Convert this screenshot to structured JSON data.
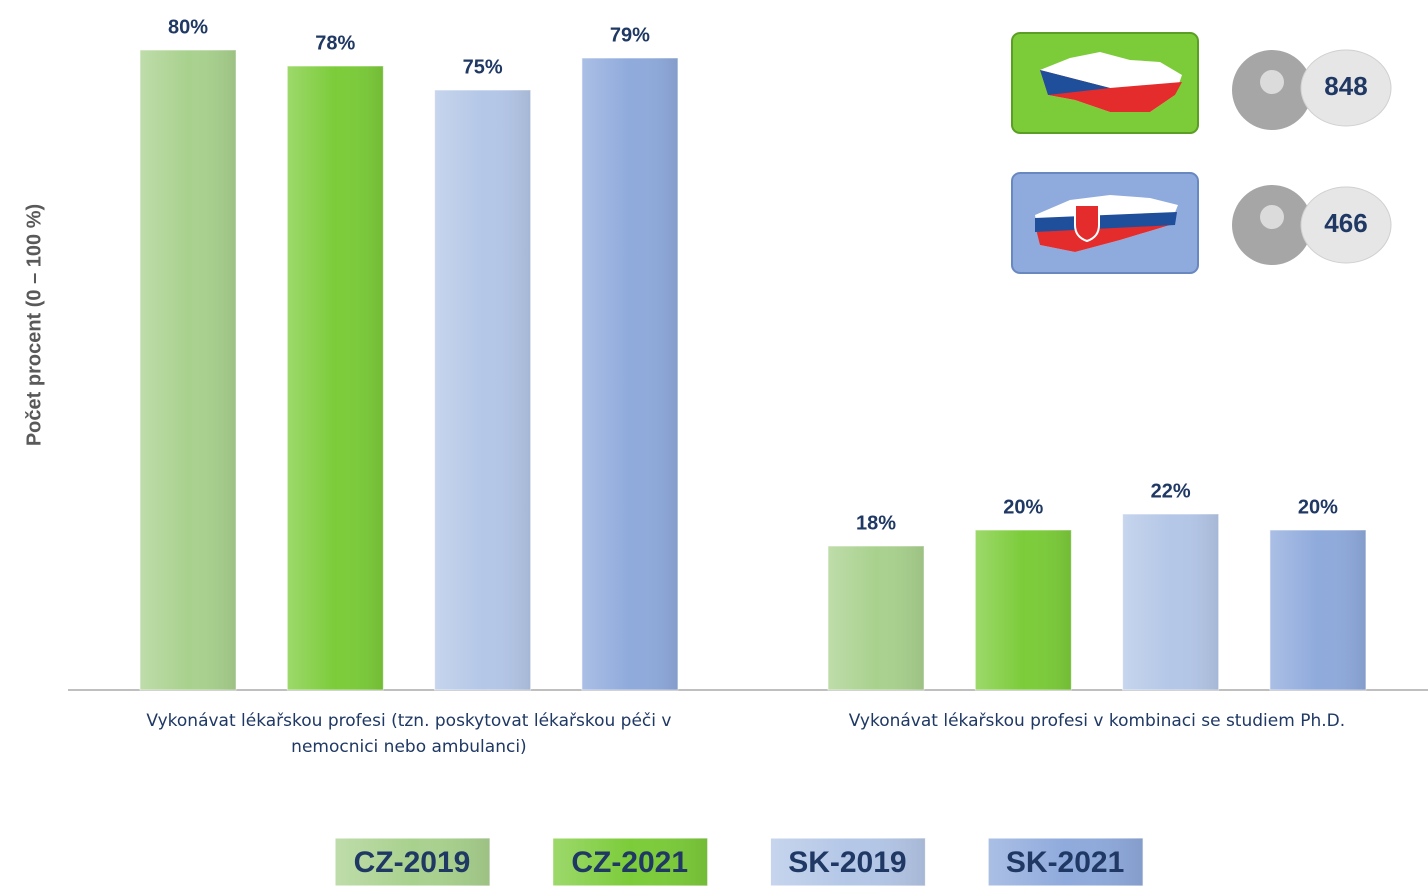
{
  "chart_data": {
    "type": "bar",
    "y_label": "Počet procent  (0 – 100 %)",
    "categories": [
      "Vykonávat lékařskou profesi (tzn. poskytovat lékařskou péči v nemocnici nebo ambulanci)",
      "Vykonávat lékařskou profesi v kombinaci se studiem Ph.D."
    ],
    "series": [
      {
        "name": "CZ-2019",
        "color": "#a9d18e",
        "values": [
          80,
          18
        ],
        "value_labels": [
          "80%",
          "18%"
        ]
      },
      {
        "name": "CZ-2021",
        "color": "#7ccc3a",
        "values": [
          78,
          20
        ],
        "value_labels": [
          "78%",
          "20%"
        ]
      },
      {
        "name": "SK-2019",
        "color": "#b4c7e7",
        "values": [
          75,
          22
        ],
        "value_labels": [
          "75%",
          "22%"
        ]
      },
      {
        "name": "SK-2021",
        "color": "#8faadc",
        "values": [
          79,
          20
        ],
        "value_labels": [
          "79%",
          "20%"
        ]
      }
    ],
    "ylim": [
      0,
      85
    ],
    "respondents": [
      848,
      466
    ]
  }
}
